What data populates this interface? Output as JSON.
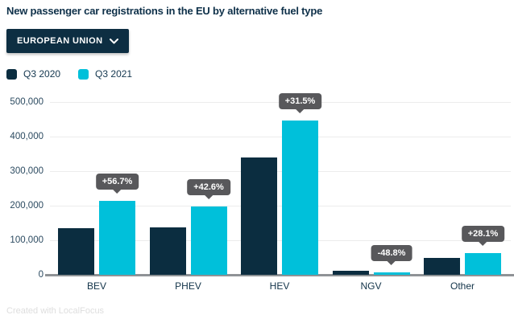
{
  "title": "New passenger car registrations in the EU by alternative fuel type",
  "region_dropdown": {
    "label": "EUROPEAN UNION",
    "icon": "chevron-down-icon"
  },
  "legend": [
    {
      "label": "Q3 2020",
      "color": "#0b2d40"
    },
    {
      "label": "Q3 2021",
      "color": "#00c0da"
    }
  ],
  "footer": "Created with LocalFocus",
  "colors": {
    "q3_2020_bar": "#0b2d40",
    "q3_2021_bar": "#00c0da",
    "badge_bg": "#58585b",
    "badge_text": "#ffffff",
    "gridline": "#ececec",
    "axis_line": "#8f9396",
    "title_text": "#0e3049",
    "dropdown_bg": "#0d2e42"
  },
  "chart_data": {
    "type": "bar",
    "title": "New passenger car registrations in the EU by alternative fuel type",
    "categories": [
      "BEV",
      "PHEV",
      "HEV",
      "NGV",
      "Other"
    ],
    "series": [
      {
        "name": "Q3 2020",
        "color": "#0b2d40",
        "values": [
          136000,
          138000,
          340000,
          12000,
          48000
        ]
      },
      {
        "name": "Q3 2021",
        "color": "#00c0da",
        "values": [
          213000,
          197000,
          447000,
          6000,
          62000
        ]
      }
    ],
    "change_labels": [
      "+56.7%",
      "+42.6%",
      "+31.5%",
      "-48.8%",
      "+28.1%"
    ],
    "xlabel": "",
    "ylabel": "",
    "ylim": [
      0,
      500000
    ],
    "yticks": [
      0,
      100000,
      200000,
      300000,
      400000,
      500000
    ],
    "ytick_labels": [
      "0",
      "100,000",
      "200,000",
      "300,000",
      "400,000",
      "500,000"
    ],
    "grid": true,
    "legend_position": "top-left"
  }
}
